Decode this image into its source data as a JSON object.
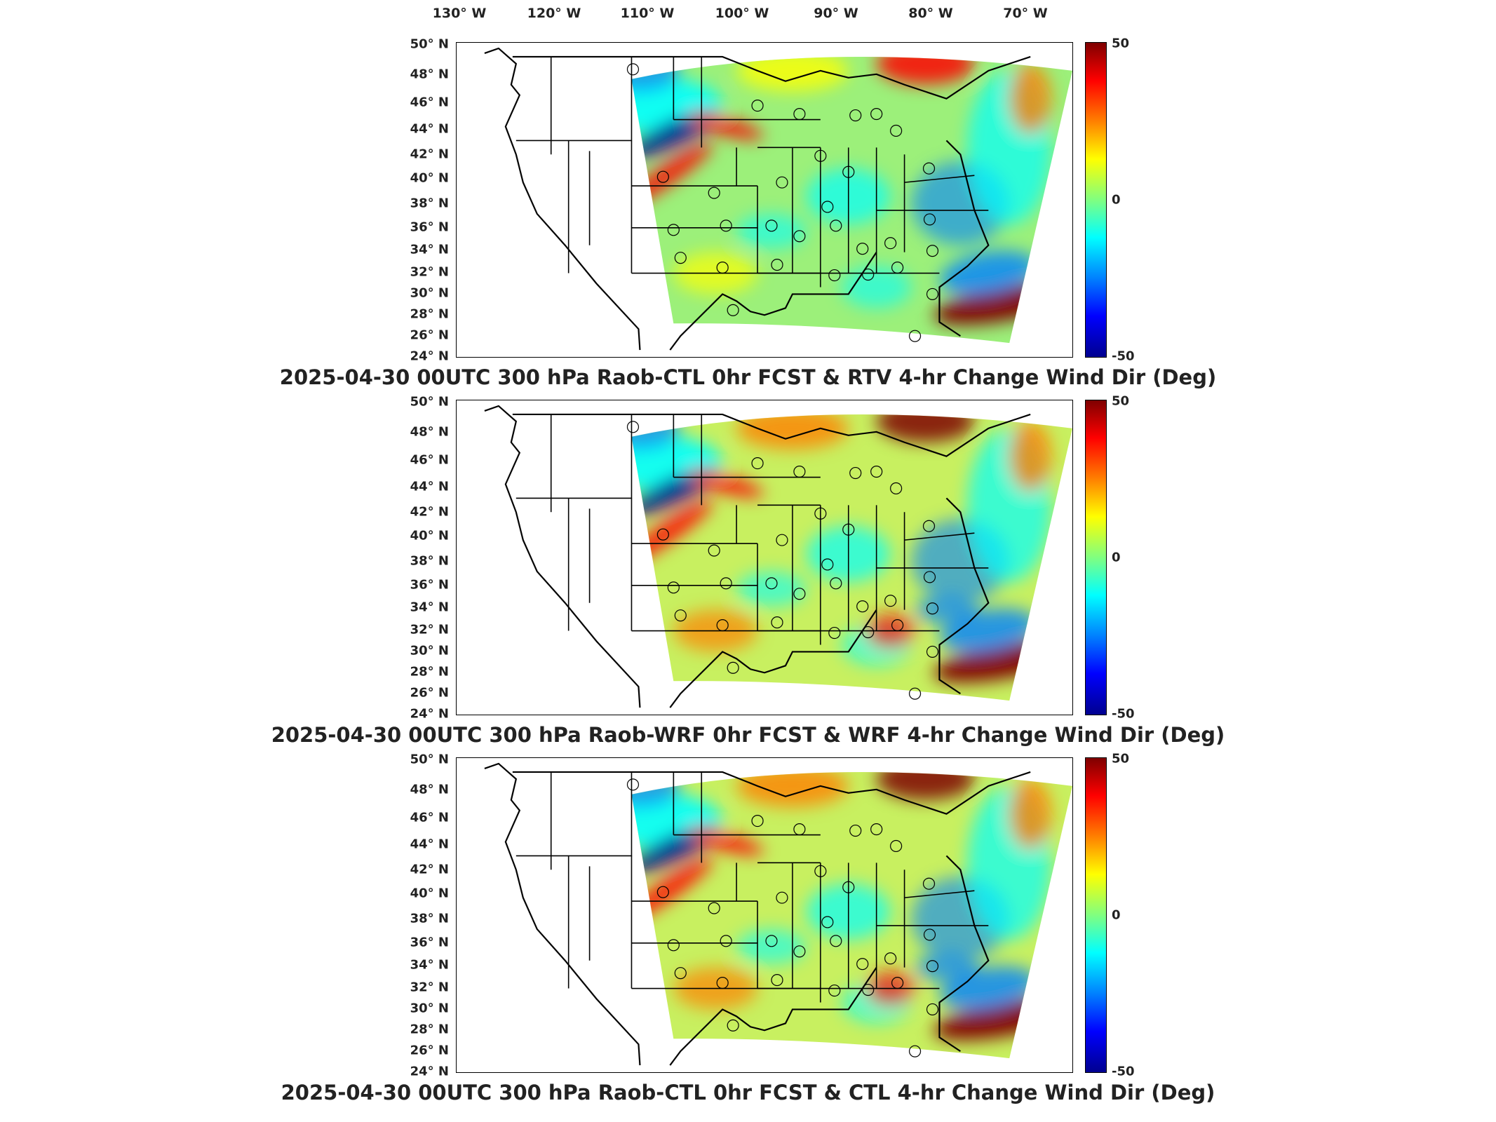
{
  "lon_labels": [
    "130° W",
    "120° W",
    "110° W",
    "100° W",
    "90° W",
    "80° W",
    "70° W"
  ],
  "lat_labels": [
    "50° N",
    "48° N",
    "46° N",
    "44° N",
    "42° N",
    "40° N",
    "38° N",
    "36° N",
    "34° N",
    "32° N",
    "30° N",
    "28° N",
    "26° N",
    "24° N"
  ],
  "colorbar": {
    "max": "50",
    "mid": "0",
    "min": "-50",
    "colormap": "jet"
  },
  "panels": [
    {
      "title": "2025-04-30 00UTC 300 hPa Raob-CTL 0hr FCST & RTV 4-hr Change Wind Dir (Deg)"
    },
    {
      "title": "2025-04-30 00UTC 300 hPa Raob-WRF 0hr FCST & WRF 4-hr Change Wind Dir (Deg)"
    },
    {
      "title": "2025-04-30 00UTC 300 hPa Raob-CTL 0hr FCST & CTL 4-hr Change Wind Dir (Deg)"
    }
  ],
  "colors": {
    "dark_red": "#7f0000",
    "red": "#ff0000",
    "orange": "#ff8000",
    "yellow": "#ffff00",
    "green": "#80ff80",
    "cyan": "#00ffff",
    "blue": "#0080ff",
    "dark_blue": "#00008f"
  }
}
